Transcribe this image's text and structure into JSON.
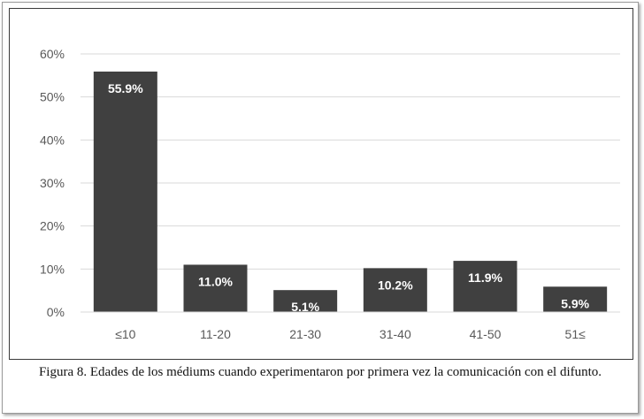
{
  "caption": "Figura 8. Edades de los médiums cuando experimentaron por primera vez la comunicación con el difunto.",
  "colors": {
    "bar": "#404040",
    "label": "#ffffff",
    "tick": "#595959",
    "grid": "#d9d9d9"
  },
  "chart_data": {
    "type": "bar",
    "categories": [
      "≤10",
      "11-20",
      "21-30",
      "31-40",
      "41-50",
      "51≤"
    ],
    "values": [
      55.9,
      11.0,
      5.1,
      10.2,
      11.9,
      5.9
    ],
    "data_labels": [
      "55.9%",
      "11.0%",
      "5.1%",
      "10.2%",
      "11.9%",
      "5.9%"
    ],
    "yticks": [
      "0%",
      "10%",
      "20%",
      "30%",
      "40%",
      "50%",
      "60%"
    ],
    "ylim": [
      0,
      60
    ],
    "grid": true,
    "legend": "none"
  }
}
